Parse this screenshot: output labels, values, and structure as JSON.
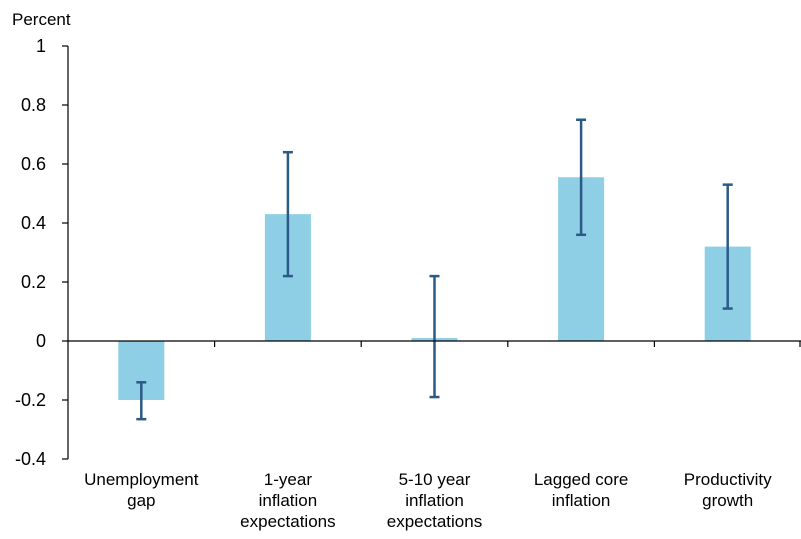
{
  "chart_data": {
    "type": "bar",
    "ylabel": "Percent",
    "xlabel": "",
    "title": "",
    "ylim": [
      -0.4,
      1
    ],
    "yticks": [
      1,
      0.8,
      0.6,
      0.4,
      0.2,
      0,
      -0.2,
      -0.4
    ],
    "ytick_labels": [
      "1",
      "0.8",
      "0.6",
      "0.4",
      "0.2",
      "0",
      "-0.2",
      "-0.4"
    ],
    "grid": false,
    "colors": {
      "bar": "#8ecfe6",
      "error_bar": "#2b5a86",
      "axis": "#000000"
    },
    "categories": [
      [
        "Unemployment",
        "gap"
      ],
      [
        "1-year",
        "inflation",
        "expectations"
      ],
      [
        "5-10 year",
        "inflation",
        "expectations"
      ],
      [
        "Lagged core",
        "inflation"
      ],
      [
        "Productivity",
        "growth"
      ]
    ],
    "values": [
      -0.2,
      0.43,
      0.01,
      0.555,
      0.32
    ],
    "error_low": [
      -0.265,
      0.22,
      -0.19,
      0.36,
      0.11
    ],
    "error_high": [
      -0.14,
      0.64,
      0.22,
      0.75,
      0.53
    ]
  }
}
